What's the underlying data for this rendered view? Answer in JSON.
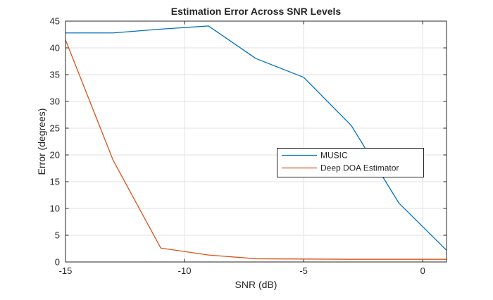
{
  "window": {
    "background": "#ffffff"
  },
  "chart_data": {
    "type": "line",
    "title": "Estimation Error Across SNR Levels",
    "xlabel": "SNR (dB)",
    "ylabel": "Error (degrees)",
    "xlim": [
      -15,
      1
    ],
    "ylim": [
      0,
      45
    ],
    "x_ticks": [
      -15,
      -10,
      -5,
      0
    ],
    "y_ticks": [
      0,
      5,
      10,
      15,
      20,
      25,
      30,
      35,
      40,
      45
    ],
    "grid": true,
    "x": [
      -15,
      -13,
      -11,
      -9,
      -7,
      -5,
      -3,
      -1,
      1
    ],
    "series": [
      {
        "name": "MUSIC",
        "color": "#0072BD",
        "values": [
          42.8,
          42.8,
          43.5,
          44.1,
          38.0,
          34.5,
          25.5,
          11.0,
          2.2
        ]
      },
      {
        "name": "Deep DOA Estimator",
        "color": "#D95319",
        "values": [
          41.5,
          19.0,
          2.6,
          1.3,
          0.6,
          0.55,
          0.5,
          0.5,
          0.5
        ]
      }
    ],
    "legend": {
      "position": "center-right",
      "border_color": "#262626",
      "background": "#ffffff"
    },
    "axis_color": "#262626",
    "grid_color": "#e2e2e2",
    "title_color": "#262626"
  }
}
